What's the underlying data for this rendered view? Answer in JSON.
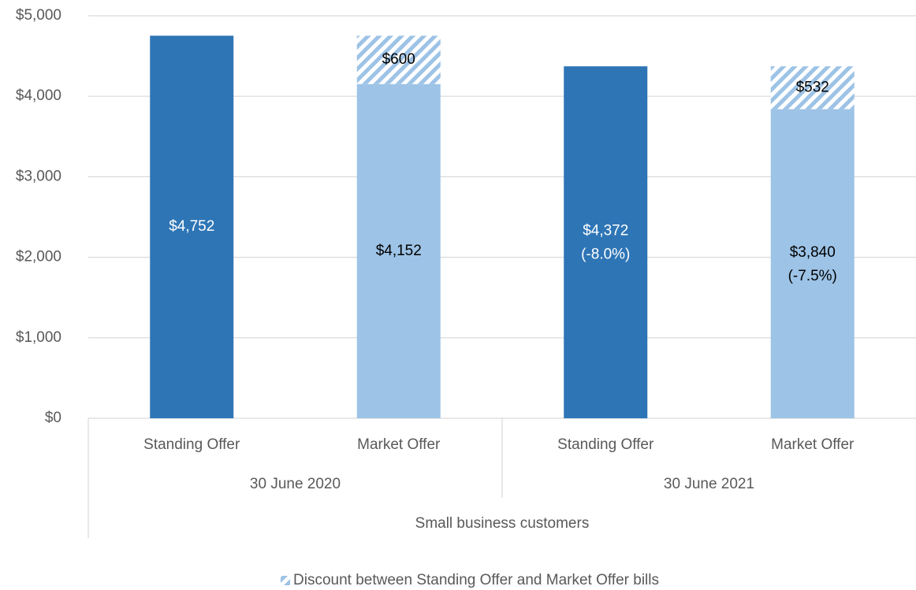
{
  "chart_data": {
    "type": "bar",
    "categories": [
      "Standing Offer",
      "Market Offer",
      "Standing Offer",
      "Market Offer"
    ],
    "groups": [
      "30 June 2020",
      "30 June 2021"
    ],
    "supergroup": "Small business customers",
    "bar_colors": [
      "#2e75b6",
      "#9dc3e6",
      "#2e75b6",
      "#9dc3e6"
    ],
    "label_colors": [
      "#ffffff",
      "#000000",
      "#ffffff",
      "#000000"
    ],
    "series": [
      {
        "values": [
          4752,
          4152,
          4372,
          3840
        ],
        "value_labels": [
          "$4,752",
          "$4,152",
          "$4,372",
          "$3,840"
        ],
        "change_labels": [
          null,
          null,
          "(-8.0%)",
          "(-7.5%)"
        ]
      },
      {
        "name": "Discount between Standing Offer and Market Offer bills",
        "color": "#9dc3e6",
        "pattern": "hatch",
        "values": [
          null,
          600,
          null,
          532
        ],
        "value_labels": [
          null,
          "$600",
          null,
          "$532"
        ]
      }
    ],
    "ylim": [
      0,
      5000
    ],
    "yticks": [
      {
        "value": 0,
        "label": "$0"
      },
      {
        "value": 1000,
        "label": "$1,000"
      },
      {
        "value": 2000,
        "label": "$2,000"
      },
      {
        "value": 3000,
        "label": "$3,000"
      },
      {
        "value": 4000,
        "label": "$4,000"
      },
      {
        "value": 5000,
        "label": "$5,000"
      }
    ],
    "grid": true,
    "legend": "bottom"
  }
}
